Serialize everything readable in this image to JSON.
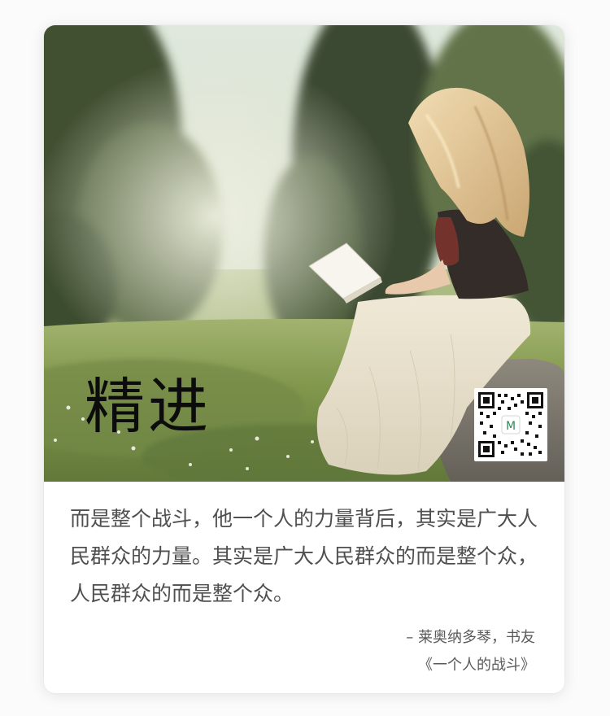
{
  "card": {
    "image_alt": "woman reading a book on a rock in a meadow",
    "title": "精进",
    "qr_code_label": "M",
    "quote": "而是整个战斗，他一个人的力量背后，其实是广大人民群众的力量。其实是广大人民群众的而是整个众，人民群众的而是整个众。",
    "author_line": "– 莱奥纳多琴，书友",
    "book_title": "《一个人的战斗》"
  },
  "colors": {
    "title": "#0c0c0c",
    "quote_text": "#4f4f4f",
    "qr_accent": "#2e8b57"
  }
}
